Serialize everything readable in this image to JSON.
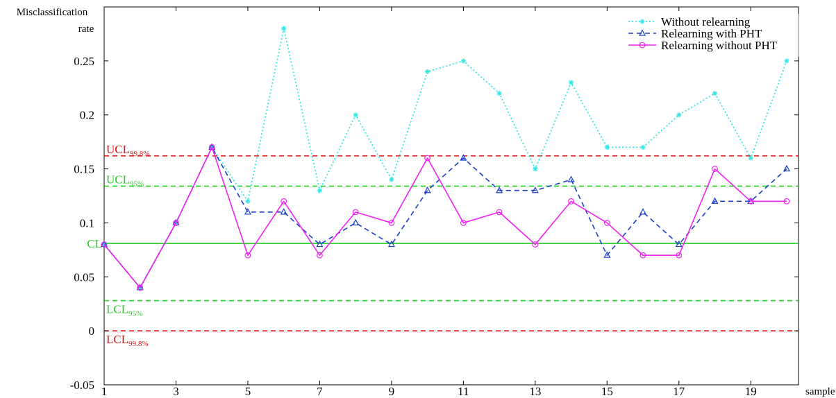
{
  "chart_data": {
    "type": "line",
    "ylabel_line1": "Misclassification",
    "ylabel_line2": "rate",
    "xlabel": "sample",
    "xlim": [
      1,
      20.3
    ],
    "ylim": [
      -0.05,
      0.3
    ],
    "x_ticks": [
      1,
      3,
      5,
      7,
      9,
      11,
      13,
      15,
      17,
      19
    ],
    "y_ticks": [
      {
        "value": -0.05,
        "label": "-0.05"
      },
      {
        "value": 0,
        "label": "0"
      },
      {
        "value": 0.05,
        "label": "0.05"
      },
      {
        "value": 0.1,
        "label": "0.1"
      },
      {
        "value": 0.15,
        "label": "0.15"
      },
      {
        "value": 0.2,
        "label": "0.2"
      },
      {
        "value": 0.25,
        "label": "0.25"
      }
    ],
    "x": [
      1,
      2,
      3,
      4,
      5,
      6,
      7,
      8,
      9,
      10,
      11,
      12,
      13,
      14,
      15,
      16,
      17,
      18,
      19,
      20
    ],
    "series": [
      {
        "name": "Without relearning",
        "color": "#33e6e6",
        "dash": "dotted",
        "marker": "star",
        "values": [
          0.08,
          0.04,
          0.1,
          0.17,
          0.12,
          0.28,
          0.13,
          0.2,
          0.14,
          0.24,
          0.25,
          0.22,
          0.15,
          0.23,
          0.17,
          0.17,
          0.2,
          0.22,
          0.16,
          0.25
        ]
      },
      {
        "name": "Relearning with PHT",
        "color": "#1a3fcc",
        "dash": "dashed",
        "marker": "triangle",
        "values": [
          0.08,
          0.04,
          0.1,
          0.17,
          0.11,
          0.11,
          0.08,
          0.1,
          0.08,
          0.13,
          0.16,
          0.13,
          0.13,
          0.14,
          0.07,
          0.11,
          0.08,
          0.12,
          0.12,
          0.15
        ]
      },
      {
        "name": "Relearning without PHT",
        "color": "#ee22ee",
        "dash": "solid",
        "marker": "circle",
        "values": [
          0.08,
          0.04,
          0.1,
          0.17,
          0.07,
          0.12,
          0.07,
          0.11,
          0.1,
          0.16,
          0.1,
          0.11,
          0.08,
          0.12,
          0.1,
          0.07,
          0.07,
          0.15,
          0.12,
          0.12
        ]
      }
    ],
    "control_limits": [
      {
        "main": "UCL",
        "sub": "99.8%",
        "value": 0.162,
        "color": "#dd1111",
        "dash": "dashed",
        "label_pos": "above"
      },
      {
        "main": "UCL",
        "sub": "95%",
        "value": 0.134,
        "color": "#22cc22",
        "dash": "dashed",
        "label_pos": "above"
      },
      {
        "main": "CL",
        "sub": "",
        "value": 0.081,
        "color": "#22cc22",
        "dash": "solid",
        "label_pos": "left"
      },
      {
        "main": "LCL",
        "sub": "95%",
        "value": 0.028,
        "color": "#22cc22",
        "dash": "dashed",
        "label_pos": "below"
      },
      {
        "main": "LCL",
        "sub": "99.8%",
        "value": 0.0,
        "color": "#dd1111",
        "dash": "dashed",
        "label_pos": "below"
      }
    ],
    "legend_position": "top-right",
    "grid": false
  }
}
